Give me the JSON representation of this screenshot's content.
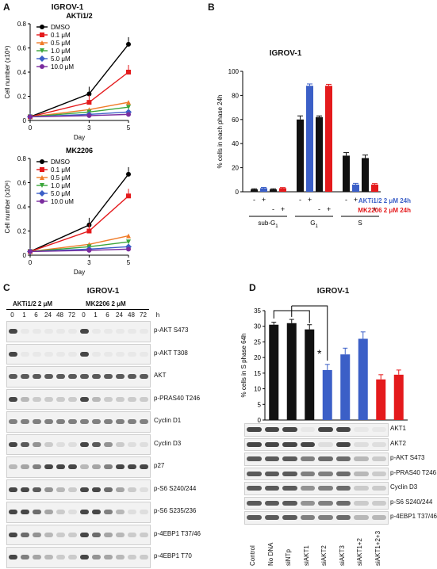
{
  "panels": {
    "A": {
      "letter": "A",
      "cell_line": "IGROV-1",
      "charts": [
        {
          "subtitle": "AKTi1/2",
          "type": "line",
          "ylabel": "Cell number (x10⁶)",
          "xlabel": "Day",
          "x": [
            0,
            3,
            5
          ],
          "ylim": [
            0,
            0.8
          ],
          "yticks": [
            0,
            0.2,
            0.4,
            0.6,
            0.8
          ],
          "series": [
            {
              "name": "DMSO",
              "color": "#000000",
              "marker": "circle",
              "values": [
                0.03,
                0.22,
                0.63
              ]
            },
            {
              "name": "0.1 μM",
              "color": "#e41a1c",
              "marker": "square",
              "values": [
                0.03,
                0.15,
                0.4
              ]
            },
            {
              "name": "0.5 μM",
              "color": "#f07c2a",
              "marker": "triangle",
              "values": [
                0.03,
                0.09,
                0.15
              ]
            },
            {
              "name": "1.0 μM",
              "color": "#3aa63a",
              "marker": "triangle-down",
              "values": [
                0.03,
                0.07,
                0.11
              ]
            },
            {
              "name": "5.0 μM",
              "color": "#3b5fc7",
              "marker": "diamond",
              "values": [
                0.03,
                0.05,
                0.07
              ]
            },
            {
              "name": "10.0 μM",
              "color": "#7a2c9e",
              "marker": "circle",
              "values": [
                0.03,
                0.04,
                0.05
              ]
            }
          ]
        },
        {
          "subtitle": "MK2206",
          "type": "line",
          "ylabel": "Cell number (x10⁶)",
          "xlabel": "Day",
          "x": [
            0,
            3,
            5
          ],
          "ylim": [
            0,
            0.8
          ],
          "yticks": [
            0,
            0.2,
            0.4,
            0.6,
            0.8
          ],
          "series": [
            {
              "name": "DMSO",
              "color": "#000000",
              "marker": "circle",
              "values": [
                0.03,
                0.25,
                0.67
              ]
            },
            {
              "name": "0.1 μM",
              "color": "#e41a1c",
              "marker": "square",
              "values": [
                0.03,
                0.2,
                0.49
              ]
            },
            {
              "name": "0.5 μM",
              "color": "#f07c2a",
              "marker": "triangle",
              "values": [
                0.03,
                0.09,
                0.16
              ]
            },
            {
              "name": "1.0 μM",
              "color": "#3aa63a",
              "marker": "triangle-down",
              "values": [
                0.03,
                0.07,
                0.11
              ]
            },
            {
              "name": "5.0 μM",
              "color": "#3b5fc7",
              "marker": "diamond",
              "values": [
                0.03,
                0.05,
                0.07
              ]
            },
            {
              "name": "10.0 uM",
              "color": "#7a2c9e",
              "marker": "circle",
              "values": [
                0.03,
                0.04,
                0.05
              ]
            }
          ]
        }
      ]
    },
    "B": {
      "letter": "B",
      "title": "IGROV-1",
      "ylabel": "% cells in each phase 24h",
      "ylim": [
        0,
        100
      ],
      "yticks": [
        0,
        20,
        40,
        60,
        80,
        100
      ],
      "groups": [
        {
          "label": "sub-G",
          "sub": "1",
          "values": [
            2,
            3,
            2,
            3
          ],
          "errors": [
            0.5,
            0.6,
            0.5,
            0.5
          ]
        },
        {
          "label": "G",
          "sub": "1",
          "values": [
            60,
            88,
            62,
            88
          ],
          "errors": [
            3,
            1.5,
            1,
            1.2
          ]
        },
        {
          "label": "S",
          "sub": "",
          "values": [
            30,
            6,
            28,
            6
          ],
          "errors": [
            2.5,
            1,
            2.5,
            0.8
          ]
        }
      ],
      "bar_colors": [
        "#111111",
        "#3b5fc7",
        "#111111",
        "#e41a1c"
      ],
      "row1": {
        "signs": [
          "-",
          "+"
        ],
        "label": "AKTi1/2 2 μM 24h",
        "color": "#3b5fc7"
      },
      "row2": {
        "signs": [
          "-",
          "+"
        ],
        "label": "MK2206 2 μM 24h",
        "color": "#e41a1c"
      }
    },
    "C": {
      "letter": "C",
      "title": "IGROV-1",
      "treatment1": "AKTi1/2 2 μM",
      "treatment2": "MK2206 2 μM",
      "time_unit": "h",
      "lanes": [
        "0",
        "1",
        "6",
        "24",
        "48",
        "72",
        "0",
        "1",
        "6",
        "24",
        "48",
        "72"
      ],
      "blots": [
        {
          "label": "p-AKT S473",
          "intensity": [
            0.9,
            0.05,
            0.05,
            0.05,
            0.05,
            0.05,
            0.9,
            0.05,
            0.05,
            0.05,
            0.05,
            0.05
          ]
        },
        {
          "label": "p-AKT T308",
          "intensity": [
            0.9,
            0.05,
            0.05,
            0.05,
            0.05,
            0.05,
            0.9,
            0.05,
            0.05,
            0.05,
            0.05,
            0.05
          ]
        },
        {
          "label": "AKT",
          "intensity": [
            0.8,
            0.8,
            0.8,
            0.8,
            0.8,
            0.8,
            0.8,
            0.8,
            0.8,
            0.8,
            0.8,
            0.8
          ]
        },
        {
          "label": "p-PRAS40 T246",
          "intensity": [
            0.9,
            0.3,
            0.2,
            0.2,
            0.2,
            0.2,
            0.9,
            0.3,
            0.2,
            0.2,
            0.2,
            0.2
          ]
        },
        {
          "label": "Cyclin D1",
          "intensity": [
            0.6,
            0.6,
            0.6,
            0.6,
            0.6,
            0.6,
            0.6,
            0.6,
            0.6,
            0.6,
            0.6,
            0.6
          ]
        },
        {
          "label": "Cyclin D3",
          "intensity": [
            0.9,
            0.8,
            0.5,
            0.2,
            0.1,
            0.1,
            0.9,
            0.8,
            0.5,
            0.2,
            0.1,
            0.1
          ]
        },
        {
          "label": "p27",
          "intensity": [
            0.3,
            0.4,
            0.6,
            0.9,
            0.9,
            0.9,
            0.3,
            0.4,
            0.6,
            0.9,
            0.9,
            0.9
          ]
        },
        {
          "label": "p-S6 S240/244",
          "intensity": [
            0.9,
            0.9,
            0.8,
            0.5,
            0.3,
            0.2,
            0.9,
            0.9,
            0.7,
            0.4,
            0.2,
            0.1
          ]
        },
        {
          "label": "p-S6 S235/236",
          "intensity": [
            0.9,
            0.9,
            0.7,
            0.4,
            0.2,
            0.1,
            0.9,
            0.9,
            0.6,
            0.3,
            0.1,
            0.1
          ]
        },
        {
          "label": "p-4EBP1 T37/46",
          "intensity": [
            0.9,
            0.7,
            0.5,
            0.3,
            0.2,
            0.2,
            0.9,
            0.7,
            0.4,
            0.3,
            0.2,
            0.2
          ]
        },
        {
          "label": "p-4EBP1 T70",
          "intensity": [
            0.9,
            0.6,
            0.4,
            0.3,
            0.2,
            0.2,
            0.9,
            0.5,
            0.4,
            0.3,
            0.2,
            0.2
          ]
        }
      ]
    },
    "D": {
      "letter": "D",
      "title": "IGROV-1",
      "ylabel": "% cells in S phase 64h",
      "ylim": [
        0,
        35
      ],
      "yticks": [
        0,
        5,
        10,
        15,
        20,
        25,
        30,
        35
      ],
      "categories": [
        "Control",
        "No DNA",
        "siNTp",
        "siAKT1",
        "siAKT2",
        "siAKT3",
        "siAKT1+2",
        "siAKT1+2+3"
      ],
      "values": [
        30.5,
        31,
        29,
        16,
        21,
        26,
        13,
        14.5
      ],
      "errors": [
        0.8,
        1.2,
        1.5,
        1.8,
        2,
        2.2,
        1.5,
        1.5
      ],
      "colors": [
        "#111111",
        "#111111",
        "#111111",
        "#3b5fc7",
        "#3b5fc7",
        "#3b5fc7",
        "#e41a1c",
        "#e41a1c"
      ],
      "star": "*",
      "blots": [
        {
          "label": "AKT1",
          "intensity": [
            0.9,
            0.9,
            0.9,
            0.05,
            0.9,
            0.9,
            0.05,
            0.05
          ]
        },
        {
          "label": "AKT2",
          "intensity": [
            0.9,
            0.9,
            0.9,
            0.9,
            0.1,
            0.9,
            0.1,
            0.1
          ]
        },
        {
          "label": "p-AKT S473",
          "intensity": [
            0.8,
            0.8,
            0.8,
            0.6,
            0.7,
            0.7,
            0.3,
            0.2
          ]
        },
        {
          "label": "p-PRAS40 T246",
          "intensity": [
            0.8,
            0.8,
            0.8,
            0.6,
            0.6,
            0.7,
            0.3,
            0.2
          ]
        },
        {
          "label": "Cyclin D3",
          "intensity": [
            0.8,
            0.8,
            0.8,
            0.5,
            0.6,
            0.7,
            0.2,
            0.2
          ]
        },
        {
          "label": "p-S6 S240/244",
          "intensity": [
            0.8,
            0.8,
            0.8,
            0.5,
            0.6,
            0.7,
            0.2,
            0.2
          ]
        },
        {
          "label": "p-4EBP1 T37/46",
          "intensity": [
            0.8,
            0.8,
            0.8,
            0.6,
            0.6,
            0.7,
            0.3,
            0.3
          ]
        }
      ]
    }
  }
}
